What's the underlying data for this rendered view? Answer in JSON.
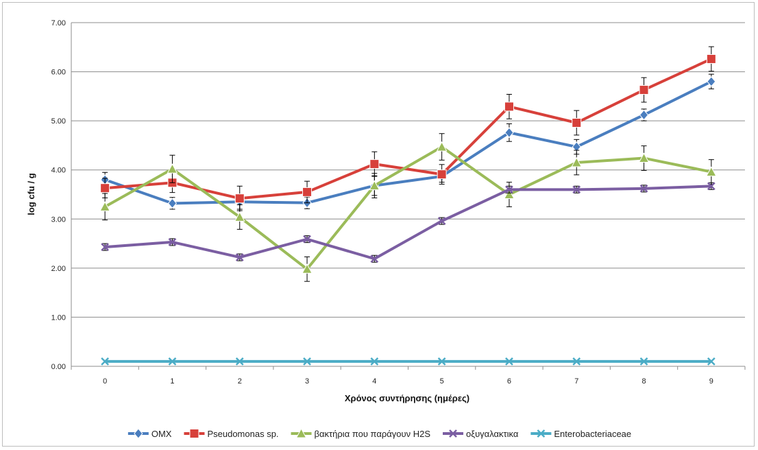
{
  "chart_data": {
    "type": "line",
    "title": "",
    "xlabel": "Χρόνος συντήρησης (ημέρες)",
    "ylabel": "log cfu / g",
    "x": [
      0,
      1,
      2,
      3,
      4,
      5,
      6,
      7,
      8,
      9
    ],
    "x_tick_labels": [
      "0",
      "1",
      "2",
      "3",
      "4",
      "5",
      "6",
      "7",
      "8",
      "9"
    ],
    "ylim": [
      0,
      7
    ],
    "y_ticks": [
      0,
      1,
      2,
      3,
      4,
      5,
      6,
      7
    ],
    "y_tick_labels": [
      "0.00",
      "1.00",
      "2.00",
      "3.00",
      "4.00",
      "5.00",
      "6.00",
      "7.00"
    ],
    "grid": "horizontal",
    "legend_position": "bottom",
    "series": [
      {
        "name": "OMX",
        "color": "#4a7ebf",
        "marker": "diamond",
        "values": [
          3.8,
          3.32,
          3.35,
          3.33,
          3.68,
          3.87,
          4.76,
          4.47,
          5.12,
          5.8
        ],
        "errors": [
          0.15,
          0.12,
          0.15,
          0.12,
          0.2,
          0.12,
          0.18,
          0.15,
          0.12,
          0.15
        ]
      },
      {
        "name": "Pseudomonas sp.",
        "color": "#d7403a",
        "marker": "square",
        "values": [
          3.63,
          3.74,
          3.42,
          3.55,
          4.12,
          3.91,
          5.29,
          4.96,
          5.63,
          6.26
        ],
        "errors": [
          0.2,
          0.2,
          0.25,
          0.22,
          0.25,
          0.2,
          0.25,
          0.25,
          0.25,
          0.25
        ]
      },
      {
        "name": "βακτήρια που παράγουν H2S",
        "color": "#9bbb59",
        "marker": "triangle",
        "values": [
          3.25,
          4.02,
          3.04,
          1.98,
          3.68,
          4.47,
          3.5,
          4.15,
          4.24,
          3.96
        ],
        "errors": [
          0.27,
          0.28,
          0.25,
          0.25,
          0.25,
          0.27,
          0.25,
          0.25,
          0.25,
          0.25
        ]
      },
      {
        "name": "οξυγαλακτικα",
        "color": "#7b5ea2",
        "marker": "x",
        "values": [
          2.43,
          2.53,
          2.22,
          2.59,
          2.19,
          2.96,
          3.6,
          3.6,
          3.62,
          3.67
        ],
        "errors": [
          0.07,
          0.07,
          0.07,
          0.07,
          0.07,
          0.07,
          0.07,
          0.07,
          0.07,
          0.07
        ]
      },
      {
        "name": "Enterobacteriaceae",
        "color": "#4bacc6",
        "marker": "x",
        "values": [
          0.1,
          0.1,
          0.1,
          0.1,
          0.1,
          0.1,
          0.1,
          0.1,
          0.1,
          0.1
        ],
        "errors": [
          0,
          0,
          0,
          0,
          0,
          0,
          0,
          0,
          0,
          0
        ]
      }
    ]
  }
}
